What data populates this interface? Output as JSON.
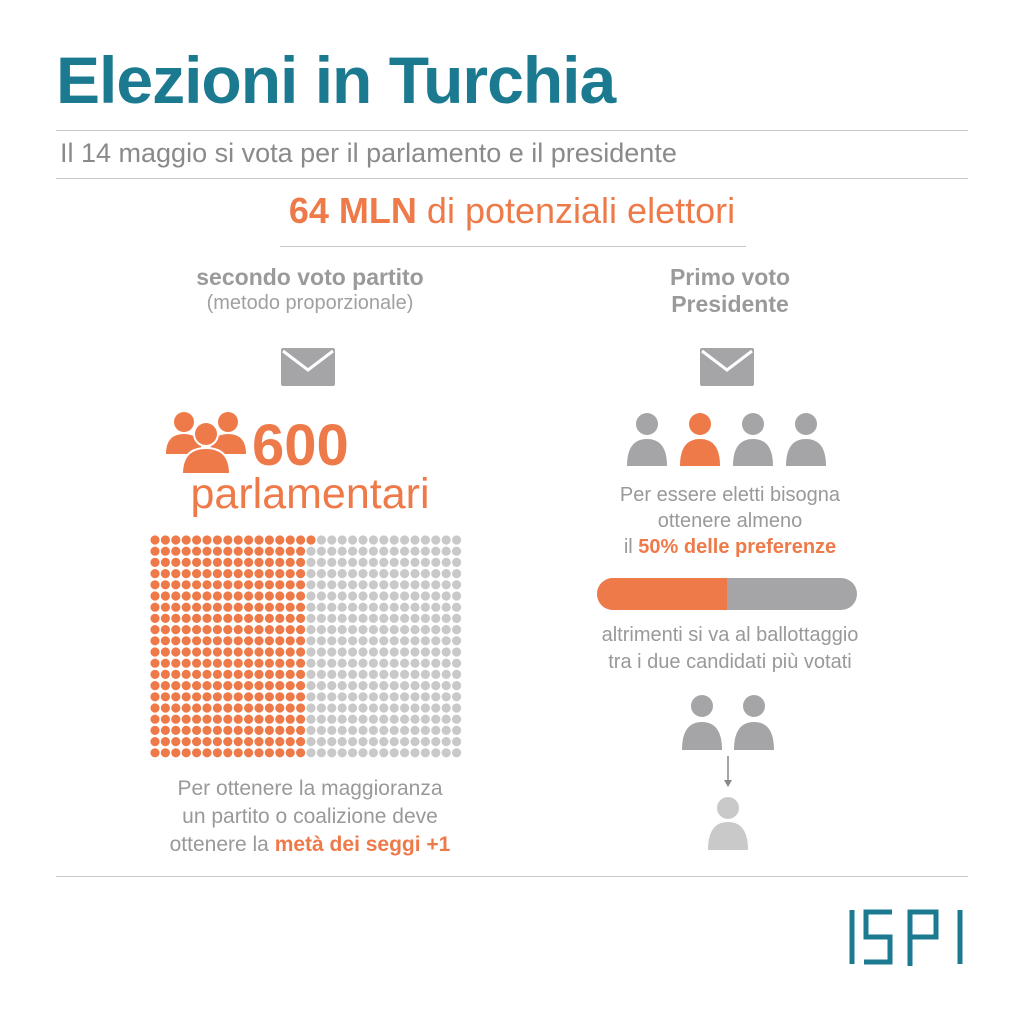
{
  "title": "Elezioni in Turchia",
  "subtitle": "Il 14 maggio si vota per il parlamento e il presidente",
  "headline": {
    "number": "64 MLN",
    "text": "di potenziali elettori"
  },
  "left": {
    "heading": "secondo voto partito",
    "subheading": "(metodo proporzionale)",
    "count": "600",
    "count_label": "parlamentari",
    "seats_total": 600,
    "seats_majority": 301,
    "note_line1": "Per ottenere la maggioranza",
    "note_line2": "un partito o coalizione deve",
    "note_line3_prefix": "ottenere la",
    "note_line3_highlight": "metà dei seggi +1"
  },
  "right": {
    "heading_line1": "Primo voto",
    "heading_line2": "Presidente",
    "candidates": 4,
    "highlighted_candidate": 2,
    "note_line1": "Per essere eletti bisogna",
    "note_line2": "ottenere almeno",
    "note_line3_prefix": "il",
    "note_line3_highlight": "50% delle preferenze",
    "threshold_fraction": 0.5,
    "runoff_line1": "altrimenti si va al ballottaggio",
    "runoff_line2": "tra i due candidati più votati"
  },
  "logo": "ISPI",
  "colors": {
    "teal": "#1c7a90",
    "orange": "#ee7a4a",
    "gray": "#a5a5a7",
    "light_gray": "#c9c9c9"
  }
}
